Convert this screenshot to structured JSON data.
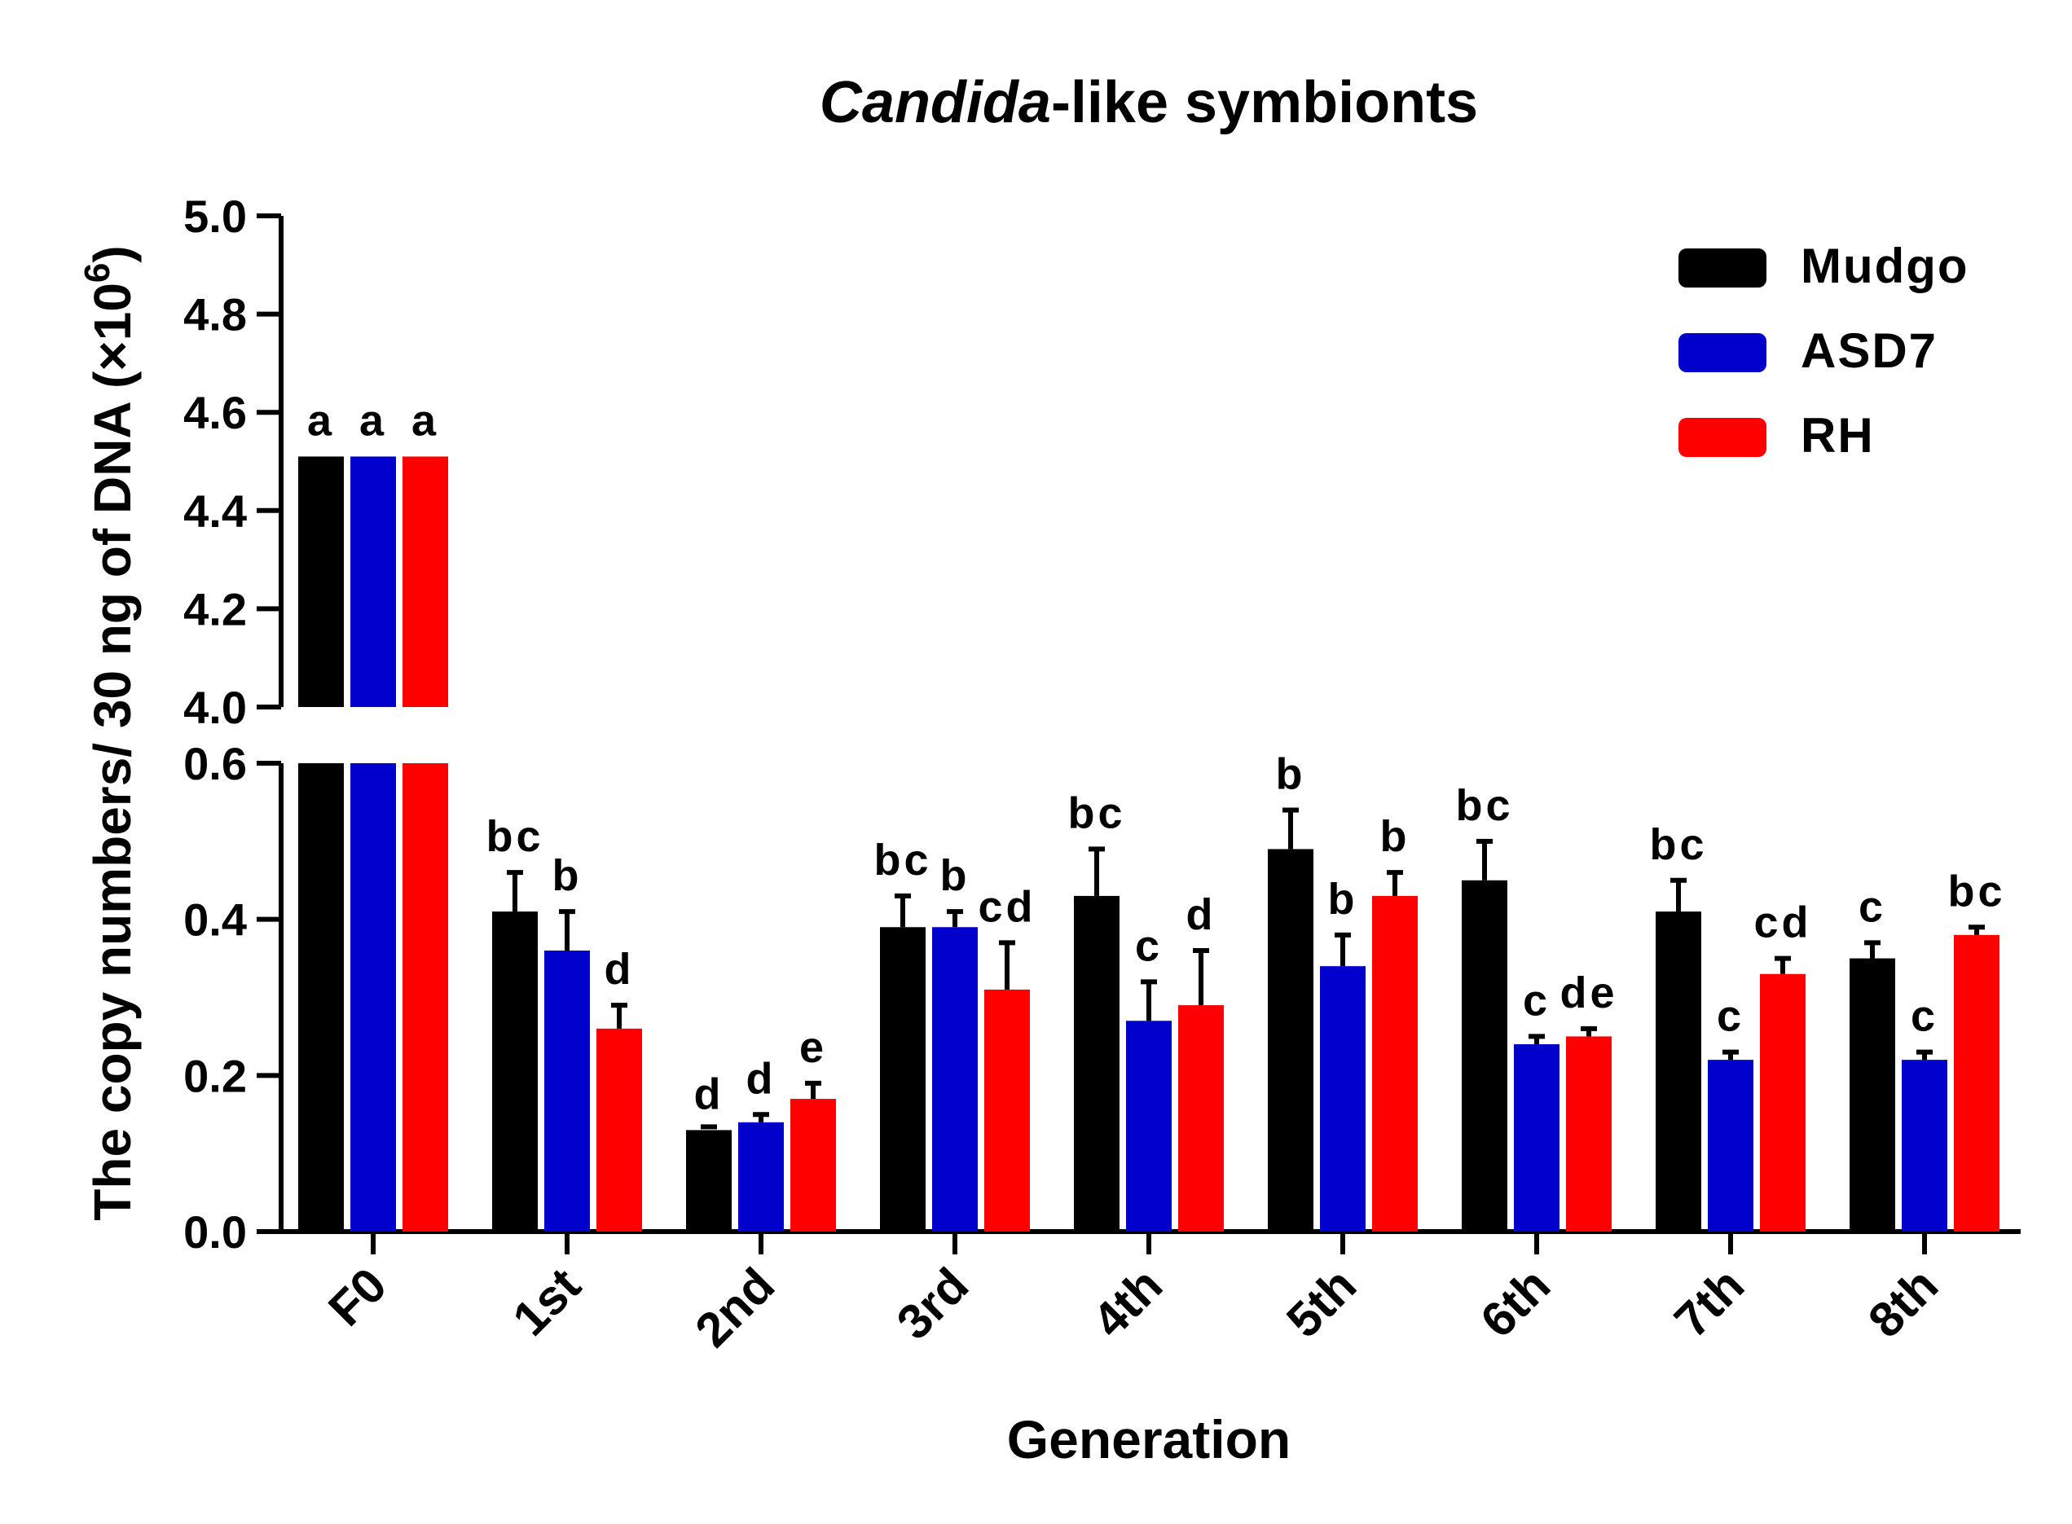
{
  "chart_data": {
    "type": "bar",
    "title": {
      "italic": "Candida",
      "rest": "-like symbionts"
    },
    "xlabel": "Generation",
    "ylabel": {
      "text": "The copy numbers/ 30 ng of DNA (×10",
      "sup": "6",
      "close": ")"
    },
    "categories": [
      "F0",
      "1st",
      "2nd",
      "3rd",
      "4th",
      "5th",
      "6th",
      "7th",
      "8th"
    ],
    "axis_break": {
      "lower_range": [
        0.0,
        0.6
      ],
      "upper_range": [
        4.0,
        5.0
      ]
    },
    "lower_ticks": [
      "0.0",
      "0.2",
      "0.4",
      "0.6"
    ],
    "upper_ticks": [
      "4.0",
      "4.2",
      "4.4",
      "4.6",
      "4.8",
      "5.0"
    ],
    "series": [
      {
        "name": "Mudgo",
        "color": "#000000",
        "values": [
          4.51,
          0.41,
          0.13,
          0.39,
          0.43,
          0.49,
          0.45,
          0.41,
          0.35
        ],
        "errors": [
          0,
          0.05,
          0,
          0.04,
          0.06,
          0.05,
          0.05,
          0.04,
          0.02
        ],
        "labels": [
          "a",
          "bc",
          "d",
          "bc",
          "bc",
          "b",
          "bc",
          "bc",
          "c"
        ]
      },
      {
        "name": "ASD7",
        "color": "#0000cc",
        "values": [
          4.51,
          0.36,
          0.14,
          0.39,
          0.27,
          0.34,
          0.24,
          0.22,
          0.22
        ],
        "errors": [
          0,
          0.05,
          0.01,
          0.02,
          0.05,
          0.04,
          0.01,
          0.01,
          0.01
        ],
        "labels": [
          "a",
          "b",
          "d",
          "b",
          "c",
          "b",
          "c",
          "c",
          "c"
        ]
      },
      {
        "name": "RH",
        "color": "#ff0000",
        "values": [
          4.51,
          0.26,
          0.17,
          0.31,
          0.29,
          0.43,
          0.25,
          0.33,
          0.38
        ],
        "errors": [
          0,
          0.03,
          0.02,
          0.06,
          0.07,
          0.03,
          0.01,
          0.02,
          0.01
        ],
        "labels": [
          "a",
          "d",
          "e",
          "cd",
          "d",
          "b",
          "de",
          "cd",
          "bc"
        ]
      }
    ],
    "legend_position": "top-right"
  }
}
